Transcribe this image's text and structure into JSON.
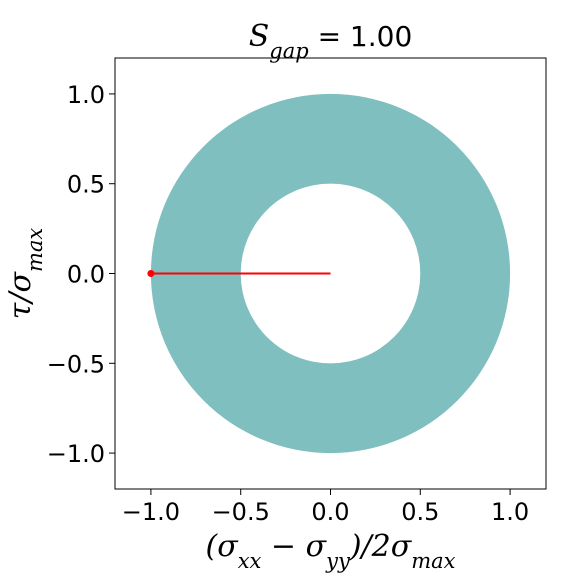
{
  "chart_data": {
    "type": "scatter",
    "title": {
      "symbol": "S",
      "subscript": "gap",
      "rest": " = 1.00"
    },
    "xlabel": {
      "parts": [
        {
          "t": "(σ",
          "sub": false
        },
        {
          "t": "xx",
          "sub": true
        },
        {
          "t": " − σ",
          "sub": false
        },
        {
          "t": "yy",
          "sub": true
        },
        {
          "t": ")/2σ",
          "sub": false
        },
        {
          "t": "max",
          "sub": true
        }
      ]
    },
    "ylabel": {
      "parts": [
        {
          "t": "τ/σ",
          "sub": false
        },
        {
          "t": "max",
          "sub": true
        }
      ]
    },
    "xlim": [
      -1.2,
      1.2
    ],
    "ylim": [
      -1.2,
      1.2
    ],
    "xticks": [
      -1.0,
      -0.5,
      0.0,
      0.5,
      1.0
    ],
    "yticks": [
      -1.0,
      -0.5,
      0.0,
      0.5,
      1.0
    ],
    "xtick_labels": [
      "−1.0",
      "−0.5",
      "0.0",
      "0.5",
      "1.0"
    ],
    "ytick_labels": [
      "−1.0",
      "−0.5",
      "0.0",
      "0.5",
      "1.0"
    ],
    "grid": false,
    "annulus": {
      "center": [
        0.0,
        0.0
      ],
      "outer_radius": 1.0,
      "inner_radius": 0.5,
      "color": "#80bfbf"
    },
    "segment": {
      "x": [
        -1.0,
        0.0
      ],
      "y": [
        0.0,
        0.0
      ],
      "color": "#ff0000",
      "marker_at": [
        -1.0,
        0.0
      ]
    }
  }
}
